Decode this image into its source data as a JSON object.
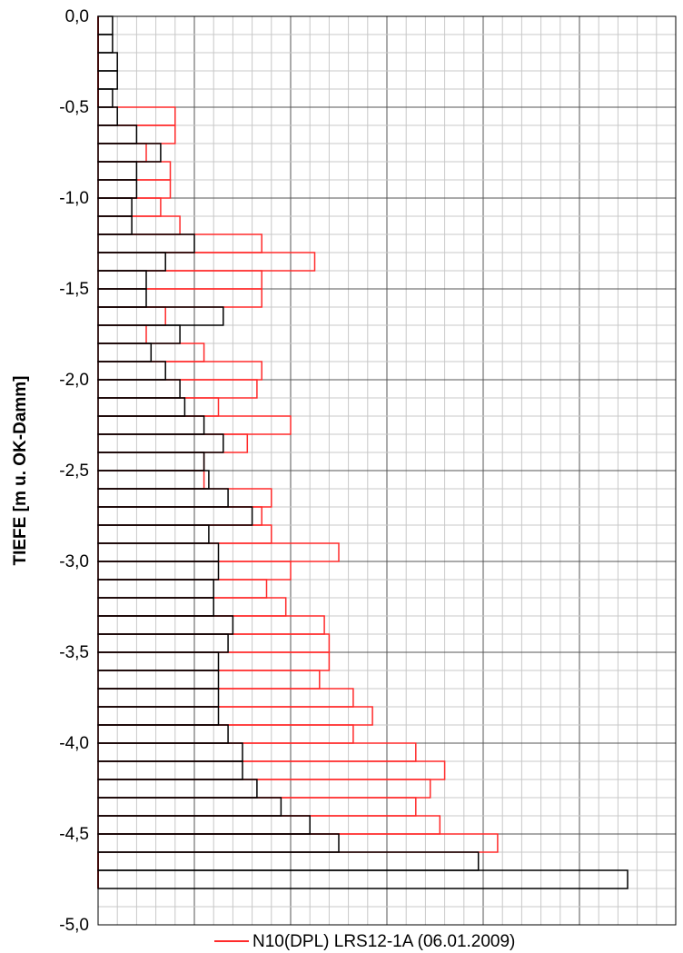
{
  "chart_data": {
    "type": "bar",
    "orientation": "horizontal-step",
    "title": "",
    "xlabel": "",
    "ylabel": "TIEFE [m u. OK-Damm]",
    "ylim": [
      -5.0,
      0.0
    ],
    "y_ticks": [
      0.0,
      -0.5,
      -1.0,
      -1.5,
      -2.0,
      -2.5,
      -3.0,
      -3.5,
      -4.0,
      -4.5,
      -5.0
    ],
    "y_tick_labels": [
      "0,0",
      "-0,5",
      "-1,0",
      "-1,5",
      "-2,0",
      "-2,5",
      "-3,0",
      "-3,5",
      "-4,0",
      "-4,5",
      "-5,0"
    ],
    "x_tick_labels_visible": false,
    "grid": true,
    "legend_position": "bottom",
    "depth_step": 0.1,
    "depths_top": [
      0.0,
      -0.1,
      -0.2,
      -0.3,
      -0.4,
      -0.5,
      -0.6,
      -0.7,
      -0.8,
      -0.9,
      -1.0,
      -1.1,
      -1.2,
      -1.3,
      -1.4,
      -1.5,
      -1.6,
      -1.7,
      -1.8,
      -1.9,
      -2.0,
      -2.1,
      -2.2,
      -2.3,
      -2.4,
      -2.5,
      -2.6,
      -2.7,
      -2.8,
      -2.9,
      -3.0,
      -3.1,
      -3.2,
      -3.3,
      -3.4,
      -3.5,
      -3.6,
      -3.7,
      -3.8,
      -3.9,
      -4.0,
      -4.1,
      -4.2,
      -4.3,
      -4.4,
      -4.5,
      -4.6,
      -4.7
    ],
    "series": [
      {
        "name": "",
        "color": "#000000",
        "values": [
          1.5,
          1.5,
          2,
          2,
          1.5,
          2,
          4,
          6.5,
          4,
          4,
          3.5,
          3.5,
          10,
          7,
          5,
          5,
          13,
          8.5,
          5.5,
          7,
          8.5,
          9,
          11,
          13,
          11,
          11.5,
          13.5,
          16,
          11.5,
          12.5,
          12.5,
          12,
          12,
          14,
          13.5,
          12.5,
          12.5,
          12.5,
          12.5,
          13.5,
          15,
          15,
          16.5,
          19,
          22,
          25,
          39.5,
          55
        ]
      },
      {
        "name": "N10(DPL) LRS12-1A (06.01.2009)",
        "color": "#ff2a2a",
        "values": [
          0,
          0,
          0,
          0,
          0,
          8,
          8,
          5,
          7.5,
          7.5,
          6.5,
          8.5,
          17,
          22.5,
          17,
          17,
          7,
          5,
          11,
          17,
          16.5,
          12.5,
          20,
          15.5,
          11,
          11,
          18,
          17,
          18,
          25,
          20,
          17.5,
          19.5,
          23.5,
          24,
          24,
          23,
          26.5,
          28.5,
          26.5,
          33,
          36,
          34.5,
          33,
          35.5,
          41.5,
          0,
          0
        ]
      }
    ]
  }
}
